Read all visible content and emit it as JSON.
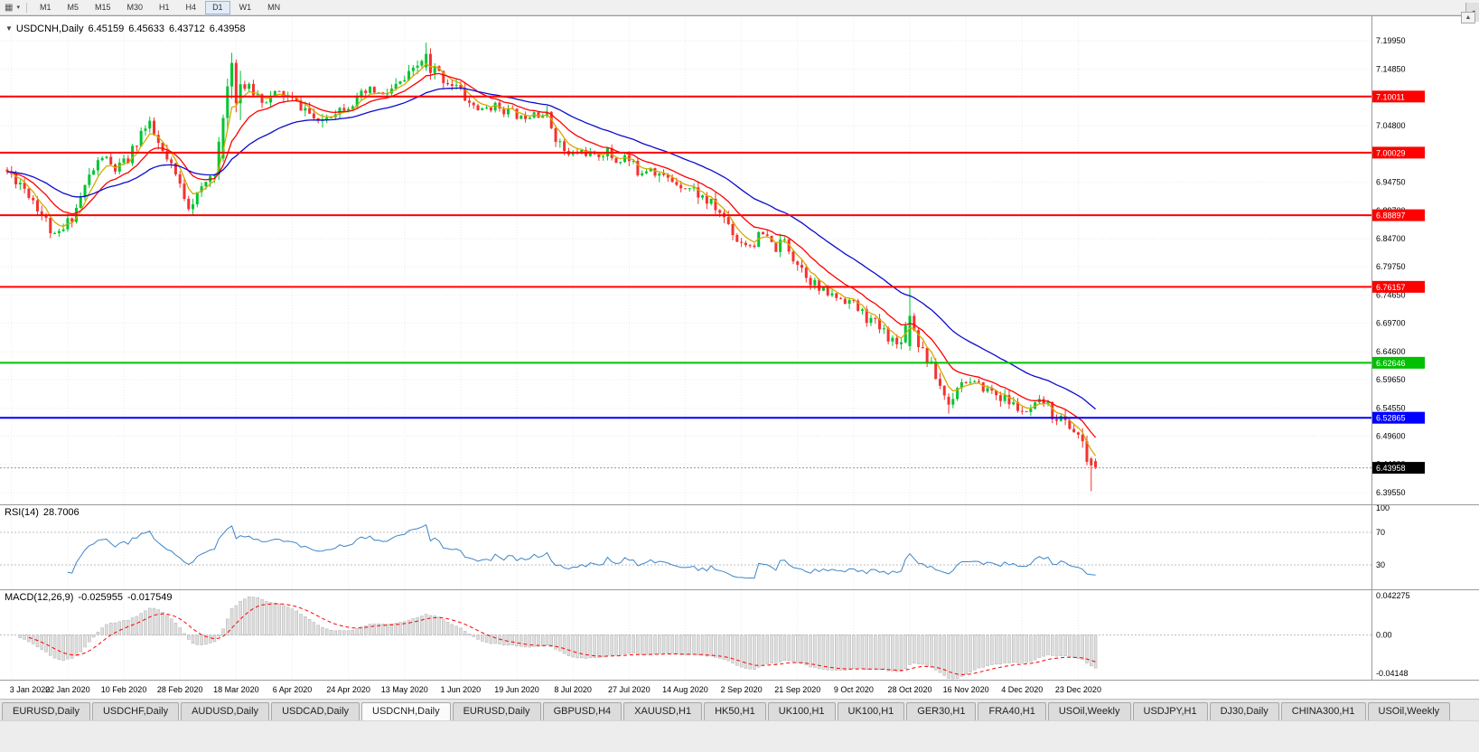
{
  "icons": {
    "charts": "▦",
    "menu_caret": "▾",
    "collapse": "▼",
    "up_caret": "▲",
    "tab_scroll": "◄"
  },
  "toolbar": {
    "timeframes": [
      {
        "label": "M1",
        "active": false
      },
      {
        "label": "M5",
        "active": false
      },
      {
        "label": "M15",
        "active": false
      },
      {
        "label": "M30",
        "active": false
      },
      {
        "label": "H1",
        "active": false
      },
      {
        "label": "H4",
        "active": false
      },
      {
        "label": "D1",
        "active": true
      },
      {
        "label": "W1",
        "active": false
      },
      {
        "label": "MN",
        "active": false
      }
    ]
  },
  "chart": {
    "title": {
      "symbol": "USDCNH,Daily",
      "open": "6.45159",
      "high": "6.45633",
      "low": "6.43712",
      "close": "6.43958"
    }
  },
  "indicators": {
    "rsi": {
      "name": "RSI(14)",
      "value": "28.7006"
    },
    "macd": {
      "name": "MACD(12,26,9)",
      "value1": "-0.025955",
      "value2": "-0.017549"
    }
  },
  "chart_data": {
    "type": "candlestick",
    "symbol": "USDCNH",
    "period": "Daily",
    "ohlc_current": {
      "open": 6.45159,
      "high": 6.45633,
      "low": 6.43712,
      "close": 6.43958
    },
    "bar_count": 253,
    "seed": 11,
    "close_anchors": [
      [
        0,
        6.966
      ],
      [
        3,
        6.948
      ],
      [
        6,
        6.918
      ],
      [
        9,
        6.878
      ],
      [
        11,
        6.848
      ],
      [
        13,
        6.862
      ],
      [
        16,
        6.902
      ],
      [
        19,
        6.958
      ],
      [
        22,
        6.993
      ],
      [
        25,
        6.968
      ],
      [
        28,
        6.986
      ],
      [
        31,
        7.038
      ],
      [
        33,
        7.046
      ],
      [
        36,
        6.998
      ],
      [
        39,
        6.958
      ],
      [
        42,
        6.908
      ],
      [
        45,
        6.932
      ],
      [
        48,
        6.972
      ],
      [
        50,
        7.062
      ],
      [
        52,
        7.16
      ],
      [
        54,
        7.122
      ],
      [
        57,
        7.108
      ],
      [
        60,
        7.092
      ],
      [
        63,
        7.108
      ],
      [
        66,
        7.092
      ],
      [
        69,
        7.078
      ],
      [
        72,
        7.052
      ],
      [
        75,
        7.072
      ],
      [
        78,
        7.082
      ],
      [
        81,
        7.092
      ],
      [
        84,
        7.112
      ],
      [
        87,
        7.102
      ],
      [
        91,
        7.122
      ],
      [
        94,
        7.142
      ],
      [
        97,
        7.176
      ],
      [
        99,
        7.148
      ],
      [
        101,
        7.132
      ],
      [
        104,
        7.118
      ],
      [
        107,
        7.088
      ],
      [
        110,
        7.076
      ],
      [
        113,
        7.086
      ],
      [
        116,
        7.074
      ],
      [
        119,
        7.064
      ],
      [
        122,
        7.074
      ],
      [
        125,
        7.064
      ],
      [
        128,
        7.014
      ],
      [
        130,
        6.994
      ],
      [
        133,
        7.004
      ],
      [
        136,
        6.994
      ],
      [
        139,
        7.002
      ],
      [
        141,
        6.984
      ],
      [
        143,
        6.994
      ],
      [
        146,
        6.966
      ],
      [
        149,
        6.976
      ],
      [
        152,
        6.956
      ],
      [
        156,
        6.944
      ],
      [
        159,
        6.934
      ],
      [
        162,
        6.914
      ],
      [
        165,
        6.894
      ],
      [
        167,
        6.874
      ],
      [
        169,
        6.846
      ],
      [
        172,
        6.836
      ],
      [
        175,
        6.854
      ],
      [
        178,
        6.826
      ],
      [
        180,
        6.844
      ],
      [
        182,
        6.816
      ],
      [
        185,
        6.786
      ],
      [
        188,
        6.756
      ],
      [
        191,
        6.746
      ],
      [
        195,
        6.736
      ],
      [
        198,
        6.714
      ],
      [
        201,
        6.694
      ],
      [
        204,
        6.676
      ],
      [
        206,
        6.658
      ],
      [
        209,
        6.708
      ],
      [
        211,
        6.664
      ],
      [
        213,
        6.634
      ],
      [
        215,
        6.602
      ],
      [
        217,
        6.57
      ],
      [
        218,
        6.552
      ],
      [
        220,
        6.588
      ],
      [
        222,
        6.594
      ],
      [
        225,
        6.584
      ],
      [
        228,
        6.576
      ],
      [
        230,
        6.566
      ],
      [
        232,
        6.556
      ],
      [
        234,
        6.546
      ],
      [
        236,
        6.536
      ],
      [
        238,
        6.546
      ],
      [
        240,
        6.556
      ],
      [
        242,
        6.536
      ],
      [
        244,
        6.526
      ],
      [
        246,
        6.514
      ],
      [
        248,
        6.498
      ],
      [
        249,
        6.478
      ],
      [
        250,
        6.455
      ],
      [
        251,
        6.444
      ],
      [
        252,
        6.4396
      ]
    ],
    "exceptions": {
      "50": {
        "o": 6.99,
        "h": 7.068,
        "l": 6.984,
        "c": 7.062
      },
      "51": {
        "o": 7.062,
        "h": 7.132,
        "l": 7.04,
        "c": 7.118
      },
      "52": {
        "o": 7.118,
        "h": 7.178,
        "l": 7.096,
        "c": 7.16
      },
      "53": {
        "o": 7.16,
        "h": 7.166,
        "l": 7.072,
        "c": 7.088
      },
      "54": {
        "o": 7.088,
        "h": 7.146,
        "l": 7.058,
        "c": 7.122
      },
      "97": {
        "o": 7.152,
        "h": 7.196,
        "l": 7.146,
        "c": 7.176
      },
      "98": {
        "o": 7.176,
        "h": 7.186,
        "l": 7.13,
        "c": 7.142
      },
      "209": {
        "o": 6.656,
        "h": 6.7616,
        "l": 6.648,
        "c": 6.71
      },
      "218": {
        "o": 6.566,
        "h": 6.572,
        "l": 6.536,
        "c": 6.552
      },
      "251": {
        "o": 6.456,
        "h": 6.459,
        "l": 6.398,
        "c": 6.444
      },
      "252": {
        "o": 6.45159,
        "h": 6.45633,
        "l": 6.43712,
        "c": 6.43958
      }
    },
    "moving_averages": [
      {
        "period": 5,
        "color": "#d4aa00"
      },
      {
        "period": 13,
        "color": "#ff0000"
      },
      {
        "period": 34,
        "color": "#0b0bcd"
      }
    ],
    "hlines": [
      {
        "price": 7.10011,
        "color": "#ff0000",
        "width": 2
      },
      {
        "price": 7.00029,
        "color": "#ff0000",
        "width": 2
      },
      {
        "price": 6.88897,
        "color": "#ff0000",
        "width": 2
      },
      {
        "price": 6.76157,
        "color": "#ff0000",
        "width": 2
      },
      {
        "price": 6.62646,
        "color": "#00c000",
        "width": 2
      },
      {
        "price": 6.52865,
        "color": "#0000ff",
        "width": 2
      }
    ],
    "current_price": {
      "value": 6.43958,
      "badge_color": "#000000"
    },
    "price_axis_ticks": [
      "7.19950",
      "7.14850",
      "7.09800",
      "7.04800",
      "6.99750",
      "6.94750",
      "6.89700",
      "6.84700",
      "6.79750",
      "6.74650",
      "6.69700",
      "6.64600",
      "6.59650",
      "6.54550",
      "6.49600",
      "6.44600",
      "6.39550"
    ],
    "time_axis": [
      {
        "label": "3 Jan 2020",
        "bar": 1
      },
      {
        "label": "22 Jan 2020",
        "bar": 14
      },
      {
        "label": "10 Feb 2020",
        "bar": 27
      },
      {
        "label": "28 Feb 2020",
        "bar": 40
      },
      {
        "label": "18 Mar 2020",
        "bar": 53
      },
      {
        "label": "6 Apr 2020",
        "bar": 66
      },
      {
        "label": "24 Apr 2020",
        "bar": 79
      },
      {
        "label": "13 May 2020",
        "bar": 92
      },
      {
        "label": "1 Jun 2020",
        "bar": 105
      },
      {
        "label": "19 Jun 2020",
        "bar": 118
      },
      {
        "label": "8 Jul 2020",
        "bar": 131
      },
      {
        "label": "27 Jul 2020",
        "bar": 144
      },
      {
        "label": "14 Aug 2020",
        "bar": 157
      },
      {
        "label": "2 Sep 2020",
        "bar": 170
      },
      {
        "label": "21 Sep 2020",
        "bar": 183
      },
      {
        "label": "9 Oct 2020",
        "bar": 196
      },
      {
        "label": "28 Oct 2020",
        "bar": 209
      },
      {
        "label": "16 Nov 2020",
        "bar": 222
      },
      {
        "label": "4 Dec 2020",
        "bar": 235
      },
      {
        "label": "23 Dec 2020",
        "bar": 248
      }
    ],
    "rsi": {
      "name": "RSI(14)",
      "period": 14,
      "current": "28.7006",
      "levels": [
        70,
        30
      ],
      "axis_ticks": [
        "100",
        "70",
        "30"
      ],
      "color": "#3d85c8"
    },
    "macd": {
      "name": "MACD(12,26,9)",
      "fast": 12,
      "slow": 26,
      "signal": 9,
      "main_value": "-0.025955",
      "signal_value": "-0.017549",
      "axis_ticks": [
        "0.042275",
        "0.00",
        "-0.04148"
      ],
      "hist_color": "#dedede",
      "hist_border": "#b0b0b0",
      "signal_color": "#ff0000"
    },
    "candle_colors": {
      "up": "#00c432",
      "down": "#f53131"
    }
  },
  "tabs": {
    "items": [
      {
        "label": "EURUSD,Daily",
        "active": false
      },
      {
        "label": "USDCHF,Daily",
        "active": false
      },
      {
        "label": "AUDUSD,Daily",
        "active": false
      },
      {
        "label": "USDCAD,Daily",
        "active": false
      },
      {
        "label": "USDCNH,Daily",
        "active": true
      },
      {
        "label": "EURUSD,Daily",
        "active": false
      },
      {
        "label": "GBPUSD,H4",
        "active": false
      },
      {
        "label": "XAUUSD,H1",
        "active": false
      },
      {
        "label": "HK50,H1",
        "active": false
      },
      {
        "label": "UK100,H1",
        "active": false
      },
      {
        "label": "UK100,H1",
        "active": false
      },
      {
        "label": "GER30,H1",
        "active": false
      },
      {
        "label": "FRA40,H1",
        "active": false
      },
      {
        "label": "USOil,Weekly",
        "active": false
      },
      {
        "label": "USDJPY,H1",
        "active": false
      },
      {
        "label": "DJ30,Daily",
        "active": false
      },
      {
        "label": "CHINA300,H1",
        "active": false
      },
      {
        "label": "USOil,Weekly",
        "active": false
      }
    ]
  }
}
